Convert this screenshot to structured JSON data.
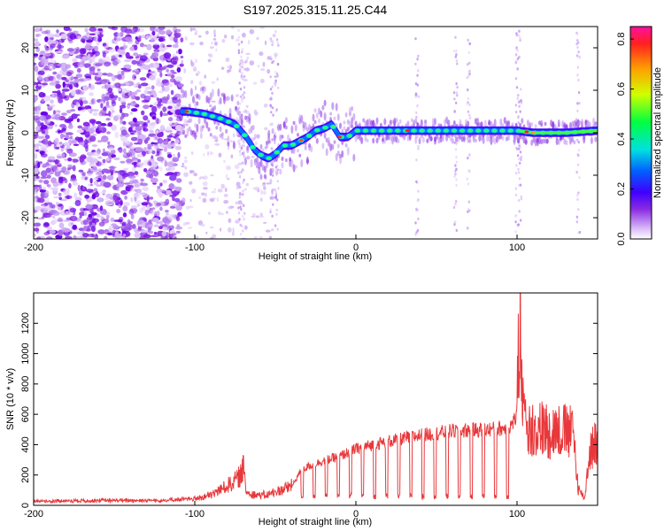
{
  "chart_data": [
    {
      "type": "heatmap",
      "title": "S197.2025.315.11.25.C44",
      "xlabel": "Height of straight line (km)",
      "ylabel": "Frequency (Hz)",
      "xlim": [
        -200,
        150
      ],
      "ylim": [
        -25,
        25
      ],
      "xticks": [
        -200,
        -100,
        0,
        100
      ],
      "yticks": [
        -20,
        -10,
        0,
        10,
        20
      ],
      "colorbar": {
        "label": "Normalized spectral amplitude",
        "range": [
          0.0,
          0.85
        ],
        "ticks": [
          "0.0",
          "0.2",
          "0.4",
          "0.6",
          "0.8"
        ]
      },
      "ridge": {
        "description": "dominant frequency track (Hz) vs height (km)",
        "x": [
          -105,
          -95,
          -85,
          -75,
          -68,
          -63,
          -58,
          -54,
          -50,
          -45,
          -40,
          -35,
          -30,
          -25,
          -20,
          -15,
          -10,
          -5,
          0,
          20,
          40,
          60,
          80,
          100,
          110,
          130,
          150
        ],
        "y": [
          5,
          4.5,
          3.5,
          2,
          -1,
          -4,
          -5.5,
          -6,
          -5,
          -3,
          -3,
          -2,
          -1,
          0.5,
          1,
          2,
          -1,
          -1,
          0.5,
          0.5,
          0.5,
          0.5,
          0.5,
          0.5,
          0,
          0,
          0.5
        ]
      }
    },
    {
      "type": "line",
      "xlabel": "Height of straight line (km)",
      "ylabel": "SNR (10 * v/v)",
      "xlim": [
        -200,
        150
      ],
      "ylim": [
        0,
        1400
      ],
      "xticks": [
        -200,
        -100,
        0,
        100
      ],
      "yticks": [
        0,
        200,
        400,
        600,
        800,
        1000,
        1200
      ],
      "color": "#e8383b",
      "envelope": {
        "x": [
          -200,
          -150,
          -120,
          -100,
          -90,
          -80,
          -72,
          -70,
          -68,
          -60,
          -55,
          -40,
          -35,
          -30,
          -20,
          -10,
          0,
          20,
          40,
          60,
          80,
          95,
          100,
          102,
          104,
          108,
          110,
          130,
          135,
          138,
          142,
          145,
          150
        ],
        "y": [
          20,
          25,
          25,
          35,
          60,
          120,
          180,
          250,
          80,
          60,
          60,
          120,
          220,
          260,
          300,
          330,
          380,
          430,
          470,
          500,
          510,
          520,
          600,
          1390,
          520,
          480,
          500,
          480,
          460,
          100,
          40,
          350,
          420
        ]
      }
    }
  ]
}
